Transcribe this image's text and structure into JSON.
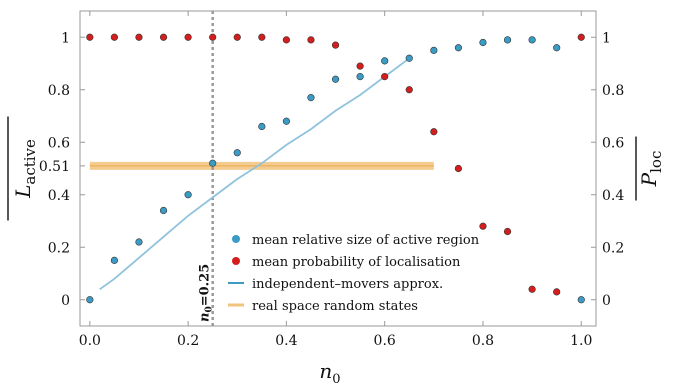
{
  "chart_data": {
    "type": "scatter",
    "xlabel_main": "n",
    "xlabel_sub": "0",
    "ylabel_left_main": "L",
    "ylabel_left_sub": "active",
    "ylabel_right_main": "P",
    "ylabel_right_sub": "loc",
    "xlim": [
      -0.02,
      1.03
    ],
    "ylim": [
      -0.1,
      1.1
    ],
    "x_ticks": [
      {
        "value": 0,
        "label": "0.0"
      },
      {
        "value": 0.2,
        "label": "0.2"
      },
      {
        "value": 0.4,
        "label": "0.4"
      },
      {
        "value": 0.6,
        "label": "0.6"
      },
      {
        "value": 0.8,
        "label": "0.8"
      },
      {
        "value": 1.0,
        "label": "1.0"
      }
    ],
    "y_ticks_left": [
      {
        "value": 0,
        "label": "0"
      },
      {
        "value": 0.2,
        "label": "0.2"
      },
      {
        "value": 0.4,
        "label": "0.4"
      },
      {
        "value": 0.51,
        "label": "0.51"
      },
      {
        "value": 0.6,
        "label": "0.6"
      },
      {
        "value": 0.8,
        "label": "0.8"
      },
      {
        "value": 1.0,
        "label": "1"
      }
    ],
    "y_ticks_right": [
      {
        "value": 0,
        "label": "0"
      },
      {
        "value": 0.2,
        "label": "0.2"
      },
      {
        "value": 0.4,
        "label": "0.4"
      },
      {
        "value": 0.6,
        "label": "0.6"
      },
      {
        "value": 0.8,
        "label": "0.8"
      },
      {
        "value": 1.0,
        "label": "1"
      }
    ],
    "vline": {
      "x": 0.25,
      "label": "n0=0.25",
      "label_main": "n",
      "label_sub": "0",
      "label_rest": "=0.25"
    },
    "hband": {
      "y": 0.51,
      "x_start": 0.0,
      "x_end": 0.7
    },
    "series": [
      {
        "name": "mean relative size of active region",
        "kind": "scatter",
        "color": "#3a9cc4",
        "points": [
          [
            0.0,
            0.0
          ],
          [
            0.05,
            0.15
          ],
          [
            0.1,
            0.22
          ],
          [
            0.15,
            0.34
          ],
          [
            0.2,
            0.4
          ],
          [
            0.25,
            0.52
          ],
          [
            0.3,
            0.56
          ],
          [
            0.35,
            0.66
          ],
          [
            0.4,
            0.68
          ],
          [
            0.45,
            0.77
          ],
          [
            0.5,
            0.84
          ],
          [
            0.55,
            0.85
          ],
          [
            0.6,
            0.91
          ],
          [
            0.65,
            0.92
          ],
          [
            0.7,
            0.95
          ],
          [
            0.75,
            0.96
          ],
          [
            0.8,
            0.98
          ],
          [
            0.85,
            0.99
          ],
          [
            0.9,
            0.99
          ],
          [
            0.95,
            0.96
          ],
          [
            1.0,
            0.0
          ]
        ]
      },
      {
        "name": "mean probability of localisation",
        "kind": "scatter",
        "color": "#d41e1e",
        "points": [
          [
            0.0,
            1.0
          ],
          [
            0.05,
            1.0
          ],
          [
            0.1,
            1.0
          ],
          [
            0.15,
            1.0
          ],
          [
            0.2,
            1.0
          ],
          [
            0.25,
            1.0
          ],
          [
            0.3,
            1.0
          ],
          [
            0.35,
            1.0
          ],
          [
            0.4,
            0.99
          ],
          [
            0.45,
            0.99
          ],
          [
            0.5,
            0.97
          ],
          [
            0.55,
            0.89
          ],
          [
            0.6,
            0.85
          ],
          [
            0.65,
            0.8
          ],
          [
            0.7,
            0.64
          ],
          [
            0.75,
            0.5
          ],
          [
            0.8,
            0.28
          ],
          [
            0.85,
            0.26
          ],
          [
            0.9,
            0.04
          ],
          [
            0.95,
            0.03
          ],
          [
            1.0,
            1.0
          ]
        ]
      },
      {
        "name": "independent–movers approx.",
        "kind": "line",
        "color": "#8fc3dc",
        "points": [
          [
            0.02,
            0.04
          ],
          [
            0.05,
            0.08
          ],
          [
            0.1,
            0.16
          ],
          [
            0.15,
            0.24
          ],
          [
            0.2,
            0.32
          ],
          [
            0.25,
            0.39
          ],
          [
            0.3,
            0.46
          ],
          [
            0.35,
            0.52
          ],
          [
            0.4,
            0.59
          ],
          [
            0.45,
            0.65
          ],
          [
            0.5,
            0.72
          ],
          [
            0.55,
            0.78
          ],
          [
            0.6,
            0.85
          ],
          [
            0.65,
            0.92
          ]
        ]
      },
      {
        "name": "real space random states",
        "kind": "band",
        "color": "#f2c37c"
      }
    ],
    "legend": [
      {
        "label": "mean relative size of active region",
        "marker": "dot",
        "color": "#3a9cc4"
      },
      {
        "label": "mean probability of localisation",
        "marker": "dot",
        "color": "#d41e1e"
      },
      {
        "label": "independent–movers approx.",
        "marker": "line",
        "color": "#3a9cc4"
      },
      {
        "label": "real space random states",
        "marker": "line",
        "color": "#f2c37c"
      }
    ]
  }
}
